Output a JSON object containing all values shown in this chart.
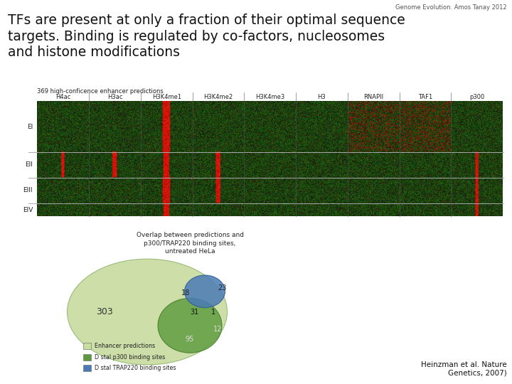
{
  "title_small": "Genome Evolution. Amos Tanay 2012",
  "title_large_line1": "TFs are present at only a fraction of their optimal sequence",
  "title_large_line2": "targets. Binding is regulated by co-factors, nucleosomes",
  "title_large_line3": "and histone modifications",
  "heatmap_title": "369 high-conficence enhancer predictions",
  "heatmap_columns": [
    "H4ac",
    "H3ac",
    "H3K4me1",
    "H3K4me2",
    "H3K4me3",
    "H3",
    "RNAPII",
    "TAF1",
    "p300"
  ],
  "heatmap_row_labels": [
    "EI",
    "EII",
    "EIII",
    "EIV"
  ],
  "venn_title": "Overlap between predictions and\np300/TRAP220 binding sites,\nuntreated HeLa",
  "venn_numbers": {
    "large_only": "303",
    "medium_only_lower": "95",
    "large_medium": "18",
    "large_medium_small": "31",
    "medium_small": "1",
    "small_only": "23",
    "small_medium_lower": "12"
  },
  "venn_legend": [
    {
      "label": "Enhancer predictions",
      "color": "#c8dba0"
    },
    {
      "label": "D stal p300 binding sites",
      "color": "#5a9a3a"
    },
    {
      "label": "D stal TRAP220 binding sites",
      "color": "#4a7ab5"
    }
  ],
  "citation": "Heinzman et al. Nature\nGenetics, 2007)",
  "bg_color": "#ffffff",
  "heatmap_col_red_pattern": {
    "col2_all_rows": true,
    "col1_row1": true,
    "col3_rows12": true,
    "col8_rows123": true,
    "col0_row1": true
  }
}
